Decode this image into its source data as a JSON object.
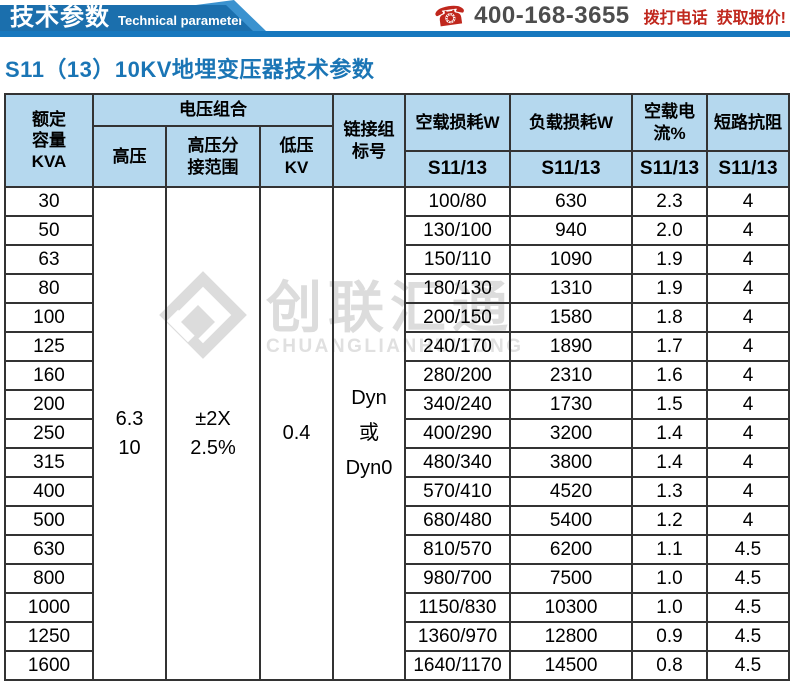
{
  "topbar": {
    "title_cn": "技术参数",
    "title_en": "Technical parameter",
    "phone_icon": "☎",
    "phone": "400-168-3655",
    "cta_call": "拨打电话",
    "cta_quote": "获取报价!"
  },
  "page_title": "S11（13）10KV地埋变压器技术参数",
  "watermark": {
    "cn": "创联汇通",
    "en": "CHUANGLIANHUITONG"
  },
  "colors": {
    "banner_blue": "#1b6fad",
    "accent_blue": "#3a92cf",
    "bar_blue": "#1778be",
    "title_blue": "#1a75b5",
    "cta_red": "#c0271d",
    "phone_gray": "#4d4d4d",
    "header_cell_bg": "#b5d8ee",
    "table_border": "#333333"
  },
  "table": {
    "headers": {
      "capacity": "额定\n容量\nKVA",
      "voltage_group": "电压组合",
      "hv": "高压",
      "hv_tap": "高压分\n接范围",
      "lv": "低压\nKV",
      "connection": "链接组\n标号",
      "no_load_loss": "空载损耗W",
      "load_loss": "负载损耗W",
      "no_load_current": "空载电流%",
      "impedance": "短路抗阻",
      "model": "S11/13"
    },
    "shared": {
      "hv_value": "6.3\n10",
      "hv_tap_value": "±2X\n2.5%",
      "lv_value": "0.4",
      "connection_value": "Dyn\n或\nDyn0"
    },
    "rows": [
      {
        "kva": "30",
        "no_load_loss": "100/80",
        "load_loss": "630",
        "no_load_current": "2.3",
        "impedance": "4"
      },
      {
        "kva": "50",
        "no_load_loss": "130/100",
        "load_loss": "940",
        "no_load_current": "2.0",
        "impedance": "4"
      },
      {
        "kva": "63",
        "no_load_loss": "150/110",
        "load_loss": "1090",
        "no_load_current": "1.9",
        "impedance": "4"
      },
      {
        "kva": "80",
        "no_load_loss": "180/130",
        "load_loss": "1310",
        "no_load_current": "1.9",
        "impedance": "4"
      },
      {
        "kva": "100",
        "no_load_loss": "200/150",
        "load_loss": "1580",
        "no_load_current": "1.8",
        "impedance": "4"
      },
      {
        "kva": "125",
        "no_load_loss": "240/170",
        "load_loss": "1890",
        "no_load_current": "1.7",
        "impedance": "4"
      },
      {
        "kva": "160",
        "no_load_loss": "280/200",
        "load_loss": "2310",
        "no_load_current": "1.6",
        "impedance": "4"
      },
      {
        "kva": "200",
        "no_load_loss": "340/240",
        "load_loss": "1730",
        "no_load_current": "1.5",
        "impedance": "4"
      },
      {
        "kva": "250",
        "no_load_loss": "400/290",
        "load_loss": "3200",
        "no_load_current": "1.4",
        "impedance": "4"
      },
      {
        "kva": "315",
        "no_load_loss": "480/340",
        "load_loss": "3800",
        "no_load_current": "1.4",
        "impedance": "4"
      },
      {
        "kva": "400",
        "no_load_loss": "570/410",
        "load_loss": "4520",
        "no_load_current": "1.3",
        "impedance": "4"
      },
      {
        "kva": "500",
        "no_load_loss": "680/480",
        "load_loss": "5400",
        "no_load_current": "1.2",
        "impedance": "4"
      },
      {
        "kva": "630",
        "no_load_loss": "810/570",
        "load_loss": "6200",
        "no_load_current": "1.1",
        "impedance": "4.5"
      },
      {
        "kva": "800",
        "no_load_loss": "980/700",
        "load_loss": "7500",
        "no_load_current": "1.0",
        "impedance": "4.5"
      },
      {
        "kva": "1000",
        "no_load_loss": "1150/830",
        "load_loss": "10300",
        "no_load_current": "1.0",
        "impedance": "4.5"
      },
      {
        "kva": "1250",
        "no_load_loss": "1360/970",
        "load_loss": "12800",
        "no_load_current": "0.9",
        "impedance": "4.5"
      },
      {
        "kva": "1600",
        "no_load_loss": "1640/1170",
        "load_loss": "14500",
        "no_load_current": "0.8",
        "impedance": "4.5"
      }
    ]
  }
}
